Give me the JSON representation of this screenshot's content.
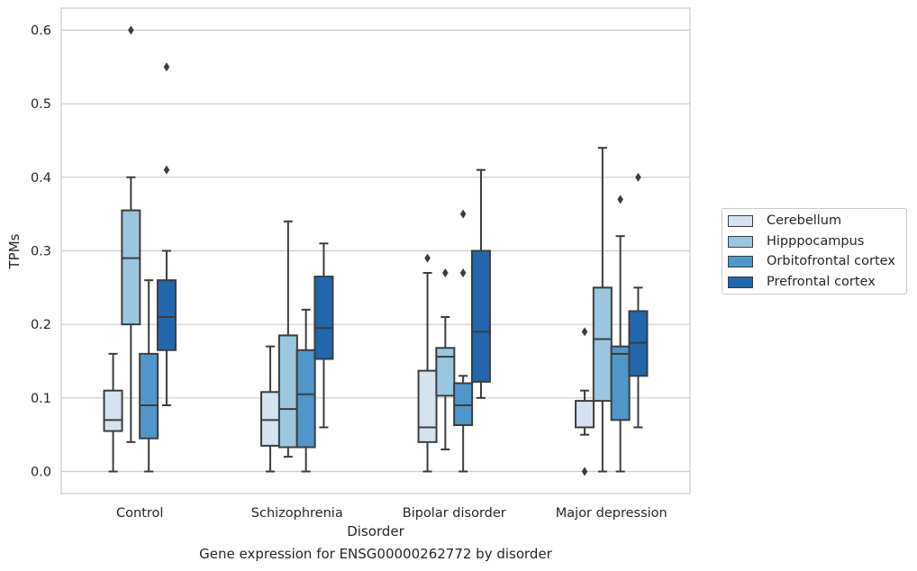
{
  "chart_data": {
    "type": "box",
    "xlabel": "Disorder",
    "ylabel": "TPMs",
    "ylim": [
      -0.03,
      0.63
    ],
    "yticks": [
      0.0,
      0.1,
      0.2,
      0.3,
      0.4,
      0.5,
      0.6
    ],
    "ytick_labels": [
      "0.0",
      "0.1",
      "0.2",
      "0.3",
      "0.4",
      "0.5",
      "0.6"
    ],
    "grid": "horizontal",
    "legend_position": "right",
    "categories": [
      "Control",
      "Schizophrenia",
      "Bipolar disorder",
      "Major depression"
    ],
    "series": [
      {
        "name": "Cerebellum",
        "color": "#d5e3f1",
        "boxes": [
          {
            "whisker_low": 0.0,
            "q1": 0.055,
            "median": 0.07,
            "q3": 0.11,
            "whisker_high": 0.16,
            "outliers": []
          },
          {
            "whisker_low": 0.0,
            "q1": 0.035,
            "median": 0.07,
            "q3": 0.108,
            "whisker_high": 0.17,
            "outliers": []
          },
          {
            "whisker_low": 0.0,
            "q1": 0.04,
            "median": 0.06,
            "q3": 0.137,
            "whisker_high": 0.27,
            "outliers": [
              0.29
            ]
          },
          {
            "whisker_low": 0.05,
            "q1": 0.06,
            "median": 0.06,
            "q3": 0.096,
            "whisker_high": 0.11,
            "outliers": [
              0.19,
              0.0
            ]
          }
        ]
      },
      {
        "name": "Hipppocampus",
        "color": "#9ac7df",
        "boxes": [
          {
            "whisker_low": 0.04,
            "q1": 0.2,
            "median": 0.29,
            "q3": 0.355,
            "whisker_high": 0.4,
            "outliers": [
              0.6
            ]
          },
          {
            "whisker_low": 0.02,
            "q1": 0.033,
            "median": 0.085,
            "q3": 0.185,
            "whisker_high": 0.34,
            "outliers": []
          },
          {
            "whisker_low": 0.03,
            "q1": 0.103,
            "median": 0.156,
            "q3": 0.168,
            "whisker_high": 0.21,
            "outliers": [
              0.27
            ]
          },
          {
            "whisker_low": 0.0,
            "q1": 0.096,
            "median": 0.18,
            "q3": 0.25,
            "whisker_high": 0.44,
            "outliers": []
          }
        ]
      },
      {
        "name": "Orbitofrontal cortex",
        "color": "#5096c8",
        "boxes": [
          {
            "whisker_low": 0.0,
            "q1": 0.045,
            "median": 0.09,
            "q3": 0.16,
            "whisker_high": 0.26,
            "outliers": []
          },
          {
            "whisker_low": 0.0,
            "q1": 0.033,
            "median": 0.105,
            "q3": 0.165,
            "whisker_high": 0.22,
            "outliers": []
          },
          {
            "whisker_low": 0.0,
            "q1": 0.063,
            "median": 0.09,
            "q3": 0.12,
            "whisker_high": 0.13,
            "outliers": [
              0.35,
              0.27
            ]
          },
          {
            "whisker_low": 0.0,
            "q1": 0.07,
            "median": 0.16,
            "q3": 0.17,
            "whisker_high": 0.32,
            "outliers": [
              0.37
            ]
          }
        ]
      },
      {
        "name": "Prefrontal cortex",
        "color": "#2267ac",
        "boxes": [
          {
            "whisker_low": 0.09,
            "q1": 0.165,
            "median": 0.21,
            "q3": 0.26,
            "whisker_high": 0.3,
            "outliers": [
              0.55,
              0.41
            ]
          },
          {
            "whisker_low": 0.06,
            "q1": 0.153,
            "median": 0.195,
            "q3": 0.265,
            "whisker_high": 0.31,
            "outliers": []
          },
          {
            "whisker_low": 0.1,
            "q1": 0.122,
            "median": 0.19,
            "q3": 0.3,
            "whisker_high": 0.41,
            "outliers": []
          },
          {
            "whisker_low": 0.06,
            "q1": 0.13,
            "median": 0.175,
            "q3": 0.218,
            "whisker_high": 0.25,
            "outliers": [
              0.4
            ]
          }
        ]
      }
    ]
  },
  "caption": "Gene expression for ENSG00000262772 by disorder"
}
